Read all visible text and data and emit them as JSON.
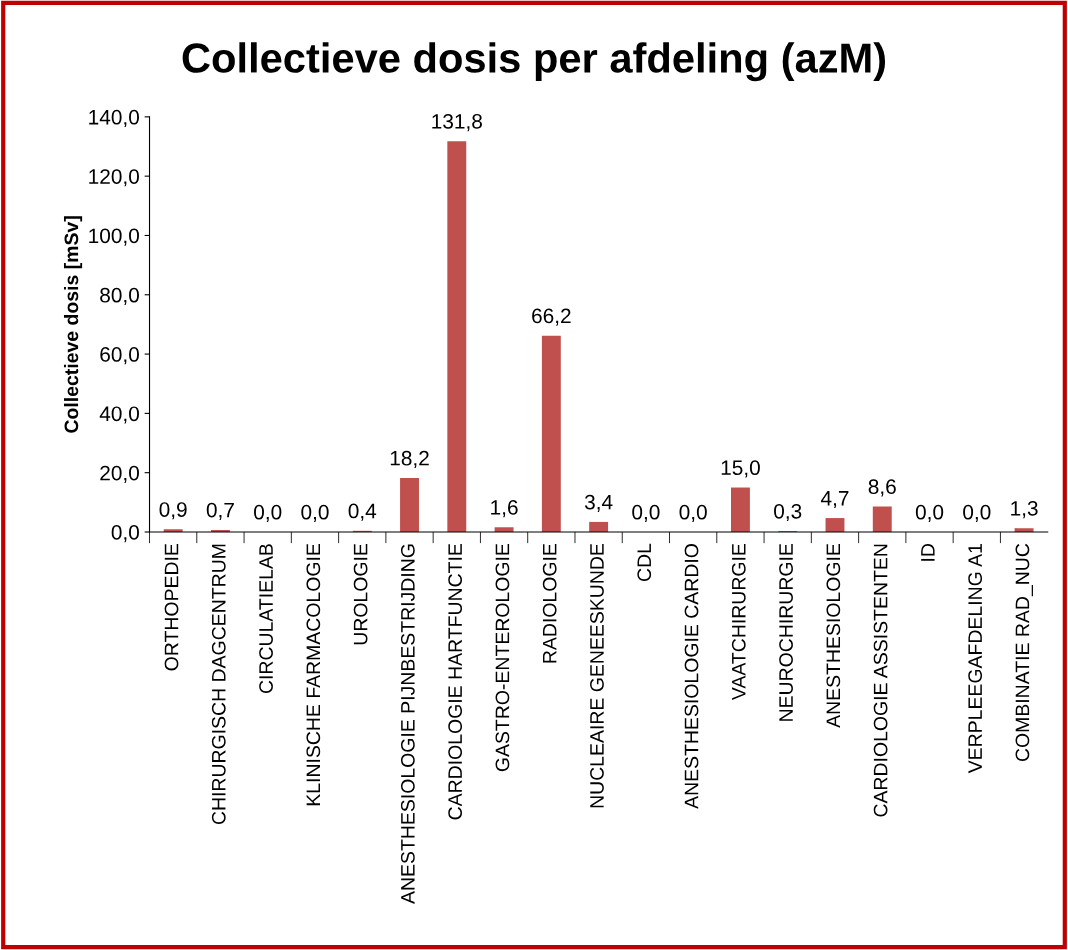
{
  "chart_data": {
    "type": "bar",
    "title": "Collectieve dosis per afdeling (azM)",
    "ylabel": "Collectieve dosis [mSv]",
    "categories": [
      "ORTHOPEDIE",
      "CHIRURGISCH DAGCENTRUM",
      "CIRCULATIELAB",
      "KLINISCHE FARMACOLOGIE",
      "UROLOGIE",
      "ANESTHESIOLOGIE PIJNBESTRIJDING",
      "CARDIOLOGIE HARTFUNCTIE",
      "GASTRO-ENTEROLOGIE",
      "RADIOLOGIE",
      "NUCLEAIRE GENEESKUNDE",
      "CDL",
      "ANESTHESIOLOGIE CARDIO",
      "VAATCHIRURGIE",
      "NEUROCHIRURGIE",
      "ANESTHESIOLOGIE",
      "CARDIOLOGIE ASSISTENTEN",
      "ID",
      "VERPLEEGAFDELING A1",
      "COMBINATIE RAD_NUC"
    ],
    "values": [
      0.9,
      0.7,
      0.0,
      0.0,
      0.4,
      18.2,
      131.8,
      1.6,
      66.2,
      3.4,
      0.0,
      0.0,
      15.0,
      0.3,
      4.7,
      8.6,
      0.0,
      0.0,
      1.3
    ],
    "value_labels": [
      "0,9",
      "0,7",
      "0,0",
      "0,0",
      "0,4",
      "18,2",
      "131,8",
      "1,6",
      "66,2",
      "3,4",
      "0,0",
      "0,0",
      "15,0",
      "0,3",
      "4,7",
      "8,6",
      "0,0",
      "0,0",
      "1,3"
    ],
    "color": "#c0504d",
    "ylim": [
      0,
      140
    ],
    "yticks": [
      {
        "value": 0,
        "label": "0,0"
      },
      {
        "value": 20,
        "label": "20,0"
      },
      {
        "value": 40,
        "label": "40,0"
      },
      {
        "value": 60,
        "label": "60,0"
      },
      {
        "value": 80,
        "label": "80,0"
      },
      {
        "value": 100,
        "label": "100,0"
      },
      {
        "value": 120,
        "label": "120,0"
      },
      {
        "value": 140,
        "label": "140,0"
      }
    ],
    "grid": false,
    "legend": false
  }
}
